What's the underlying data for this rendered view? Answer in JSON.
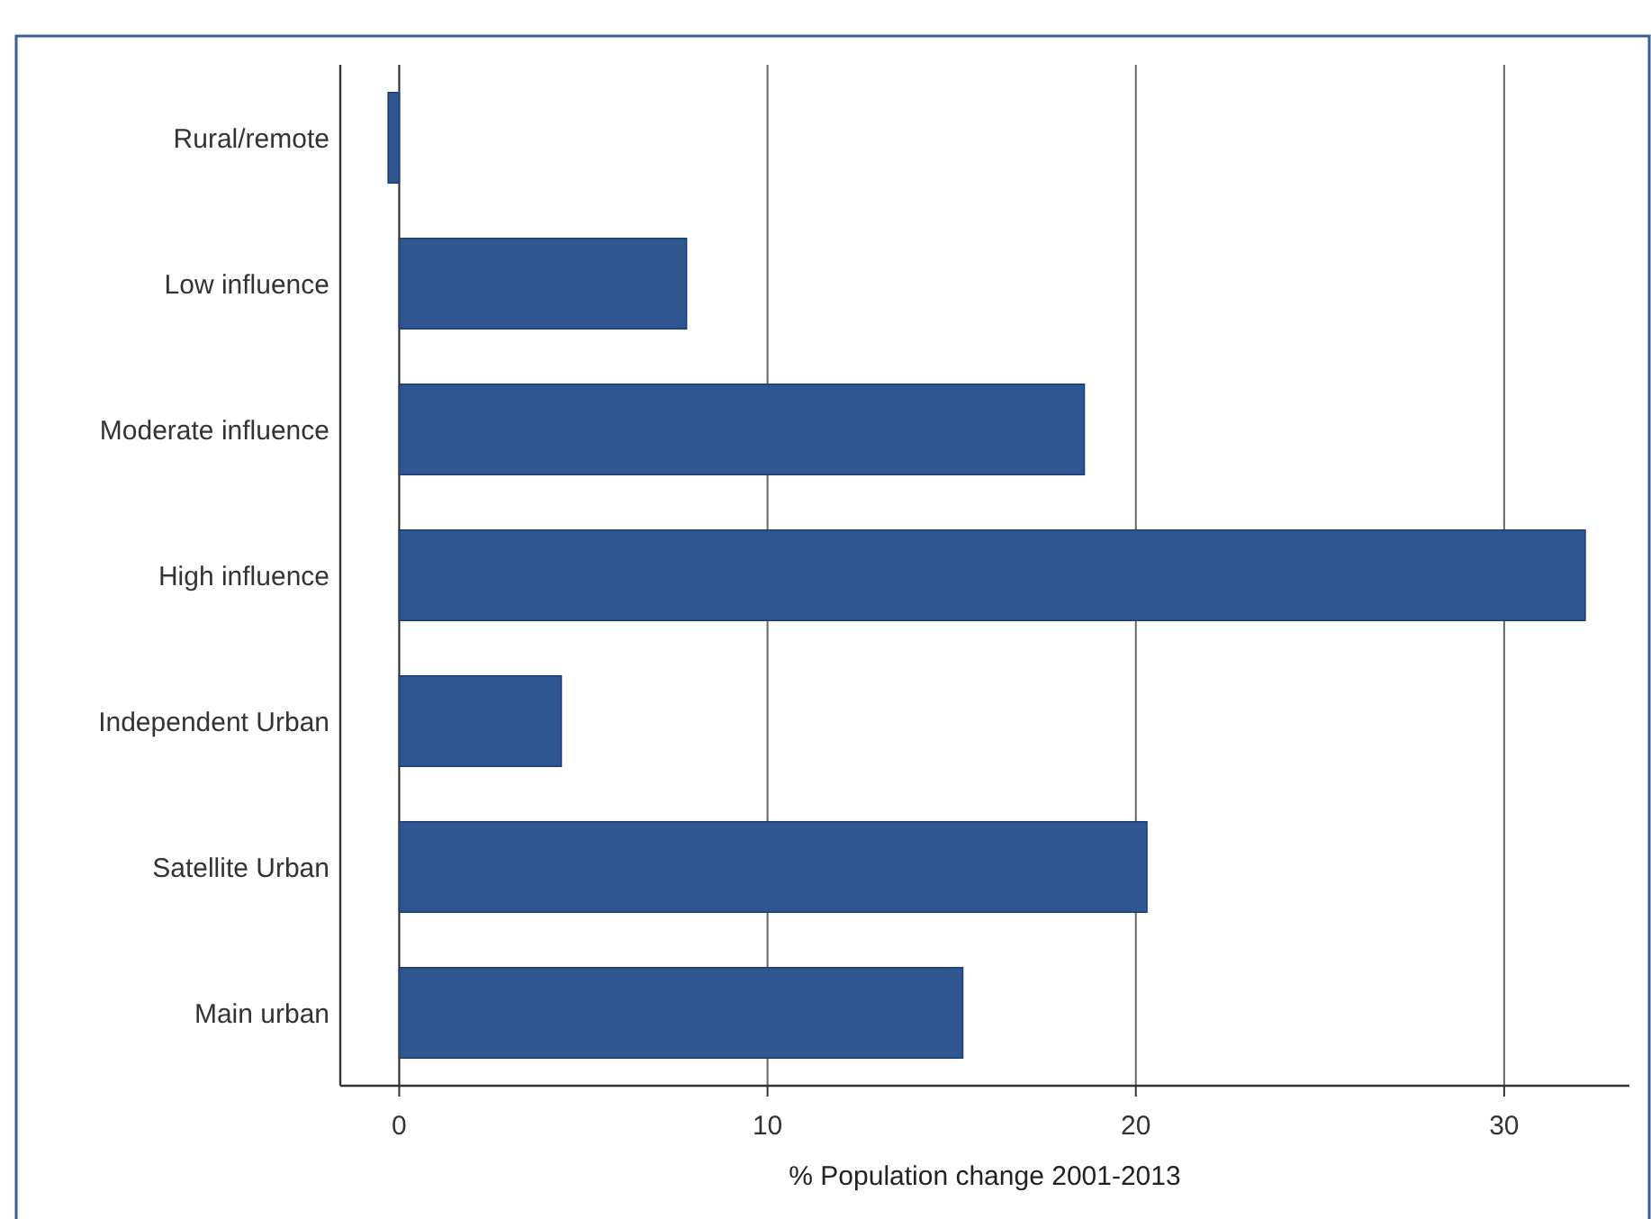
{
  "chart_data": {
    "type": "bar",
    "orientation": "horizontal",
    "categories": [
      "Rural/remote",
      "Low influence",
      "Moderate influence",
      "High influence",
      "Independent Urban",
      "Satellite Urban",
      "Main urban"
    ],
    "values": [
      -0.3,
      7.8,
      18.6,
      32.2,
      4.4,
      20.3,
      15.3
    ],
    "color": "#2f5690",
    "xlabel": "% Population change 2001-2013",
    "xlim": [
      -1.6,
      33.4
    ],
    "xticks": [
      0,
      10,
      20,
      30
    ],
    "grid": "x"
  }
}
